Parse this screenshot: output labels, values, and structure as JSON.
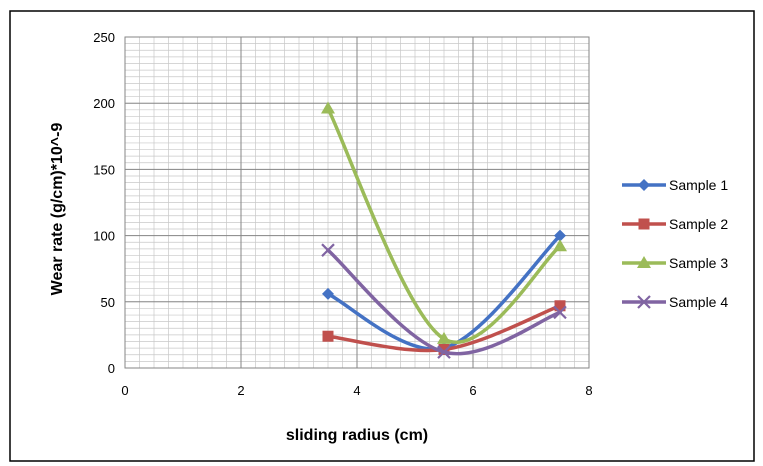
{
  "chart_data": {
    "type": "scatter",
    "title": "",
    "xlabel": "sliding radius (cm)",
    "ylabel": "Wear rate (g/cm)*10^-9",
    "xlim": [
      0,
      8
    ],
    "ylim": [
      0,
      250
    ],
    "x_ticks": [
      0,
      2,
      4,
      6,
      8
    ],
    "y_ticks": [
      0,
      50,
      100,
      150,
      200,
      250
    ],
    "x_tick_labels": [
      "0",
      "2",
      "4",
      "6",
      "8"
    ],
    "y_tick_labels": [
      "0",
      "50",
      "100",
      "150",
      "200",
      "250"
    ],
    "grid": true,
    "minor_grid": true,
    "smooth_lines": true,
    "legend_position": "right",
    "series": [
      {
        "name": "Sample 1",
        "color": "#4472C4",
        "marker": "diamond",
        "x": [
          3.5,
          5.5,
          7.5
        ],
        "y": [
          56,
          15,
          100
        ]
      },
      {
        "name": "Sample 2",
        "color": "#C0504D",
        "marker": "square",
        "x": [
          3.5,
          5.5,
          7.5
        ],
        "y": [
          24,
          14,
          47
        ]
      },
      {
        "name": "Sample 3",
        "color": "#9BBB59",
        "marker": "triangle",
        "x": [
          3.5,
          5.5,
          7.5
        ],
        "y": [
          196,
          22,
          92
        ]
      },
      {
        "name": "Sample 4",
        "color": "#8064A2",
        "marker": "x",
        "x": [
          3.5,
          5.5,
          7.5
        ],
        "y": [
          89,
          12,
          42
        ]
      }
    ]
  }
}
